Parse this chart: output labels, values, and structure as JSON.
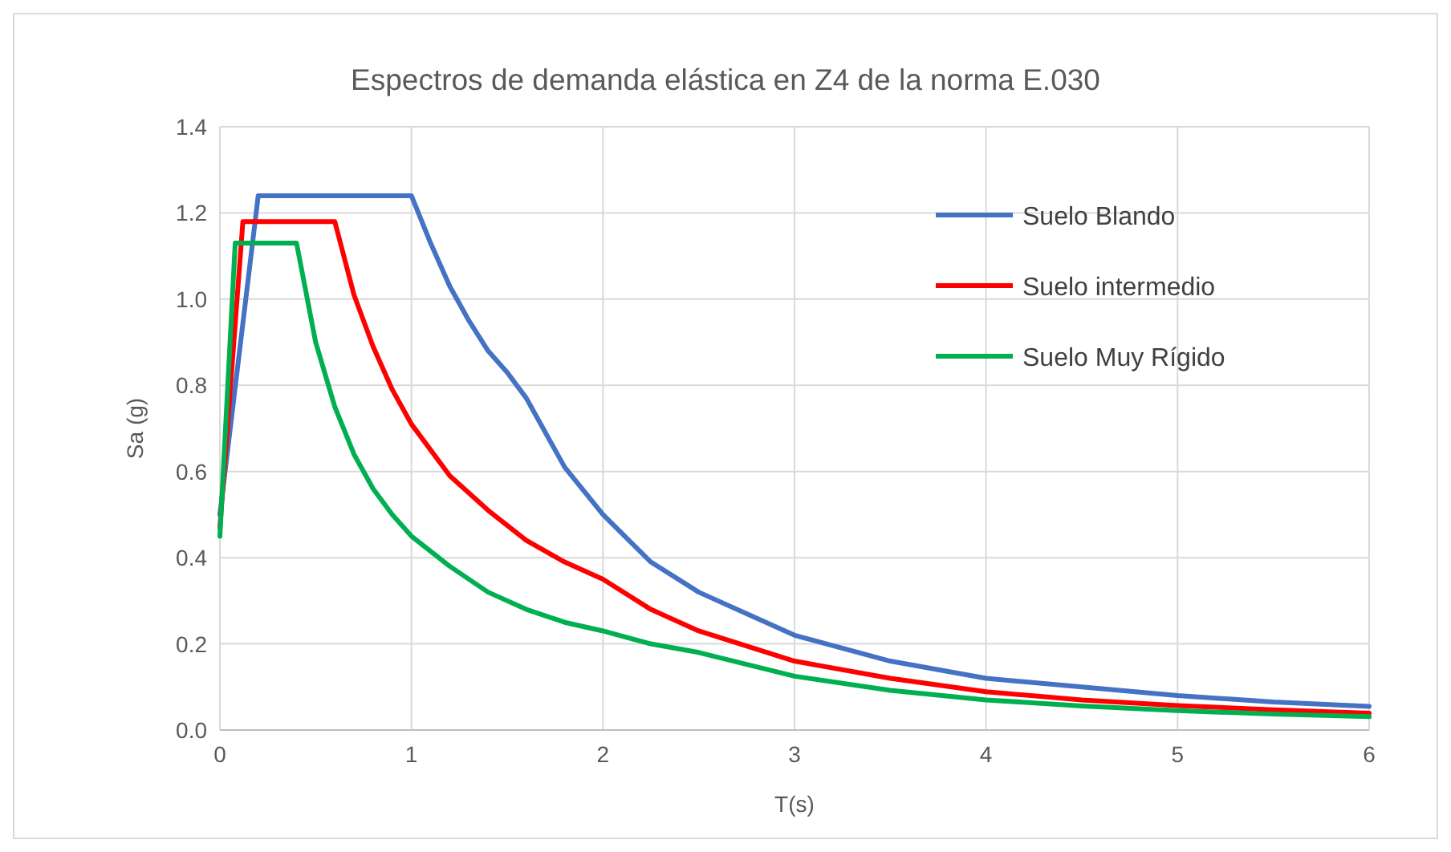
{
  "chart_data": {
    "type": "line",
    "title": "Espectros de demanda elástica en Z4 de la norma E.030",
    "xlabel": "T(s)",
    "ylabel": "Sa (g)",
    "xlim": [
      0,
      6
    ],
    "xticks": [
      0,
      1,
      2,
      3,
      4,
      5,
      6
    ],
    "ylim": [
      0,
      1.4
    ],
    "yticks": [
      {
        "value": 0,
        "label": "0.0"
      },
      {
        "value": 0.2,
        "label": "0.2"
      },
      {
        "value": 0.4,
        "label": "0.4"
      },
      {
        "value": 0.6,
        "label": "0.6"
      },
      {
        "value": 0.8,
        "label": "0.8"
      },
      {
        "value": 1,
        "label": "1.0"
      },
      {
        "value": 1.2,
        "label": "1.2"
      },
      {
        "value": 1.4,
        "label": "1.4"
      }
    ],
    "grid": true,
    "legend": "top right",
    "marker": "none",
    "line_style": "solid",
    "series": [
      {
        "name": "Suelo Blando",
        "color": "#4472c4",
        "x": [
          0,
          0.2,
          1,
          1.1,
          1.2,
          1.3,
          1.4,
          1.5,
          1.6,
          1.8,
          2,
          2.25,
          2.5,
          3,
          3.5,
          4,
          4.5,
          5,
          5.5,
          6
        ],
        "values": [
          0.5,
          1.24,
          1.24,
          1.13,
          1.03,
          0.95,
          0.88,
          0.83,
          0.77,
          0.61,
          0.5,
          0.39,
          0.32,
          0.22,
          0.16,
          0.12,
          0.1,
          0.08,
          0.065,
          0.055
        ]
      },
      {
        "name": "Suelo intermedio",
        "color": "#ff0000",
        "x": [
          0,
          0.12,
          0.6,
          0.7,
          0.8,
          0.9,
          1,
          1.2,
          1.4,
          1.6,
          1.8,
          2,
          2.25,
          2.5,
          3,
          3.5,
          4,
          4.5,
          5,
          5.5,
          6
        ],
        "values": [
          0.47,
          1.18,
          1.18,
          1.01,
          0.89,
          0.79,
          0.71,
          0.59,
          0.51,
          0.44,
          0.39,
          0.35,
          0.28,
          0.23,
          0.16,
          0.12,
          0.089,
          0.07,
          0.057,
          0.047,
          0.039
        ]
      },
      {
        "name": "Suelo Muy Rígido",
        "color": "#00b050",
        "x": [
          0,
          0.08,
          0.4,
          0.5,
          0.6,
          0.7,
          0.8,
          0.9,
          1,
          1.2,
          1.4,
          1.6,
          1.8,
          2,
          2.25,
          2.5,
          3,
          3.5,
          4,
          4.5,
          5,
          5.5,
          6
        ],
        "values": [
          0.45,
          1.13,
          1.13,
          0.9,
          0.75,
          0.64,
          0.56,
          0.5,
          0.45,
          0.38,
          0.32,
          0.28,
          0.25,
          0.23,
          0.2,
          0.18,
          0.125,
          0.092,
          0.07,
          0.056,
          0.045,
          0.037,
          0.031
        ]
      }
    ]
  }
}
